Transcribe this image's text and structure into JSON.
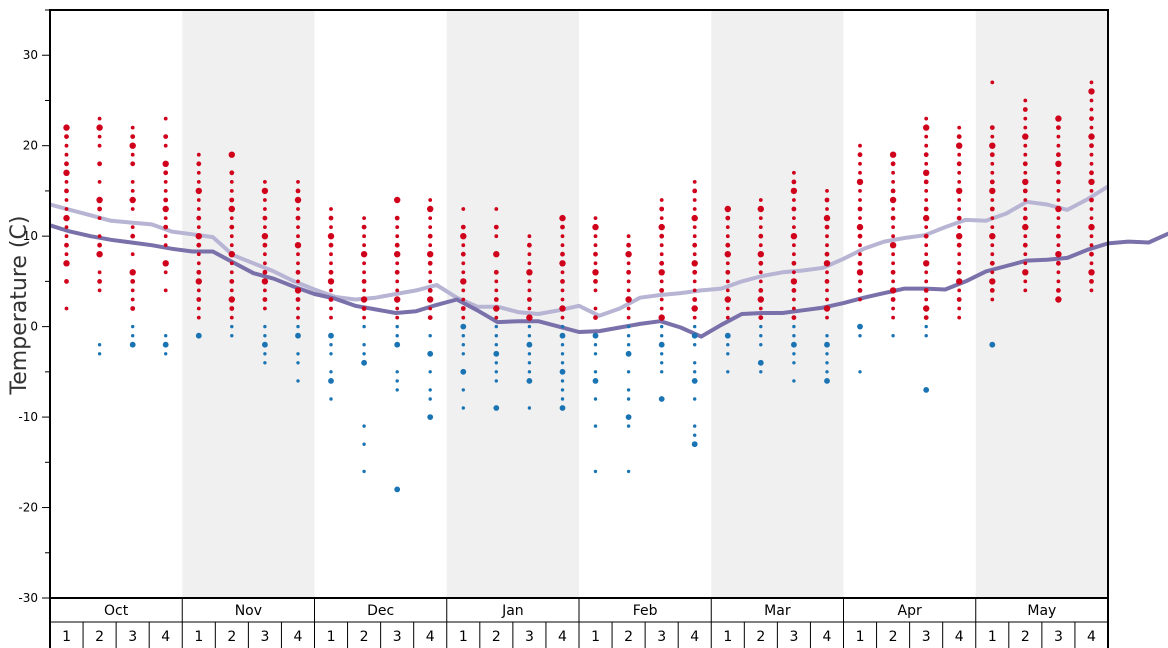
{
  "chart_data": {
    "type": "scatter",
    "ylabel": "Temperature (C)",
    "ylim": [
      -30,
      35
    ],
    "yticks": [
      -30,
      -20,
      -10,
      0,
      10,
      20,
      30
    ],
    "months": [
      "Oct",
      "Nov",
      "Dec",
      "Jan",
      "Feb",
      "Mar",
      "Apr",
      "May"
    ],
    "weeks": [
      "1",
      "2",
      "3",
      "4"
    ],
    "grid": false,
    "colors": {
      "warm": "#d0021b",
      "cold": "#1a74b3",
      "upper_line": "#b8b4d4",
      "lower_line": "#7a70aa",
      "shade": "#f0f0f0"
    },
    "series": [
      {
        "values": [
          13.5,
          12.9,
          12.3,
          11.7,
          11.5,
          11.3,
          10.5,
          10.2,
          9.9,
          7.9,
          7.0,
          6.1,
          5.0,
          4.1,
          3.3,
          3.0,
          3.2,
          3.6,
          4.0,
          4.6,
          3.2,
          2.2,
          2.2,
          1.6,
          1.4,
          1.8,
          2.3,
          1.2,
          2.0,
          3.2,
          3.5,
          3.7,
          4.0,
          4.2,
          5.0,
          5.6,
          6.0,
          6.2,
          6.5,
          7.5,
          8.6,
          9.4,
          9.8,
          10.1,
          11.0,
          11.8,
          11.7,
          12.5,
          13.8,
          13.5,
          12.9,
          14.1,
          15.5
        ]
      },
      {
        "values": [
          11.2,
          10.5,
          10.0,
          9.6,
          9.3,
          9.0,
          8.6,
          8.3,
          8.3,
          7.1,
          5.9,
          5.3,
          4.4,
          3.6,
          3.1,
          2.3,
          1.9,
          1.5,
          1.7,
          2.4,
          3.0,
          1.8,
          0.5,
          0.6,
          0.6,
          0.0,
          -0.6,
          -0.5,
          -0.1,
          0.3,
          0.6,
          -0.1,
          -1.1,
          0.2,
          1.4,
          1.5,
          1.5,
          1.8,
          2.1,
          2.6,
          3.2,
          3.7,
          4.2,
          4.2,
          4.1,
          5.0,
          6.1,
          6.7,
          7.3,
          7.4,
          7.6,
          8.5,
          9.2,
          9.4,
          9.3,
          10.3,
          11.5,
          11.1,
          10.5,
          11.6,
          13.0
        ]
      }
    ],
    "dot_columns": [
      {
        "x": "Oct 1",
        "warm": [
          22,
          21,
          20,
          19,
          18,
          17,
          16,
          15,
          14,
          13,
          12,
          11,
          10,
          9,
          8,
          7,
          5,
          2
        ],
        "cold": []
      },
      {
        "x": "Oct 2",
        "warm": [
          23,
          22,
          21,
          20,
          18,
          16,
          14,
          13,
          12,
          10,
          9,
          8,
          6,
          5,
          4
        ],
        "cold": [
          -2,
          -3
        ]
      },
      {
        "x": "Oct 3",
        "warm": [
          22,
          21,
          20,
          19,
          18,
          16,
          15,
          14,
          13,
          11,
          10,
          8,
          6,
          5,
          4,
          3,
          2
        ],
        "cold": [
          0,
          -1,
          -2
        ]
      },
      {
        "x": "Oct 4",
        "warm": [
          23,
          21,
          20,
          18,
          17,
          16,
          15,
          14,
          13,
          12,
          11,
          10,
          9,
          7,
          6,
          4
        ],
        "cold": [
          -1,
          -2,
          -3
        ]
      },
      {
        "x": "Nov 1",
        "warm": [
          19,
          18,
          17,
          16,
          15,
          14,
          13,
          12,
          11,
          10,
          9,
          8,
          7,
          6,
          5,
          4,
          3,
          2,
          1
        ],
        "cold": [
          -1
        ]
      },
      {
        "x": "Nov 2",
        "warm": [
          19,
          17,
          16,
          15,
          14,
          13,
          12,
          11,
          10,
          9,
          8,
          7,
          6,
          5,
          4,
          3,
          2,
          1
        ],
        "cold": [
          0,
          -1
        ]
      },
      {
        "x": "Nov 3",
        "warm": [
          16,
          15,
          14,
          13,
          12,
          11,
          10,
          9,
          8,
          7,
          6,
          5,
          4,
          3,
          2
        ],
        "cold": [
          0,
          -1,
          -2,
          -3,
          -4
        ]
      },
      {
        "x": "Nov 4",
        "warm": [
          16,
          15,
          14,
          13,
          12,
          11,
          10,
          9,
          8,
          7,
          6,
          5,
          4,
          3,
          2,
          1
        ],
        "cold": [
          0,
          -1,
          -3,
          -4,
          -6
        ]
      },
      {
        "x": "Dec 1",
        "warm": [
          13,
          12,
          11,
          10,
          9,
          8,
          7,
          6,
          5,
          4,
          3,
          2,
          1
        ],
        "cold": [
          -1,
          -2,
          -3,
          -5,
          -6,
          -8
        ]
      },
      {
        "x": "Dec 2",
        "warm": [
          12,
          11,
          10,
          9,
          8,
          7,
          6,
          5,
          4,
          3,
          2,
          1
        ],
        "cold": [
          0,
          -2,
          -3,
          -4,
          -11,
          -13,
          -16
        ]
      },
      {
        "x": "Dec 3",
        "warm": [
          14,
          12,
          11,
          10,
          9,
          8,
          7,
          6,
          5,
          4,
          3,
          2,
          1
        ],
        "cold": [
          0,
          -1,
          -2,
          -5,
          -6,
          -7,
          -18
        ]
      },
      {
        "x": "Dec 4",
        "warm": [
          14,
          13,
          12,
          11,
          10,
          9,
          8,
          7,
          6,
          5,
          4,
          3,
          2,
          1
        ],
        "cold": [
          -1,
          -3,
          -5,
          -7,
          -8,
          -10
        ]
      },
      {
        "x": "Jan 1",
        "warm": [
          13,
          11,
          10,
          9,
          8,
          7,
          6,
          5,
          4,
          3,
          2,
          1
        ],
        "cold": [
          0,
          -1,
          -2,
          -3,
          -5,
          -7,
          -9
        ]
      },
      {
        "x": "Jan 2",
        "warm": [
          13,
          11,
          10,
          8,
          6,
          5,
          4,
          3,
          2,
          1
        ],
        "cold": [
          0,
          -1,
          -2,
          -3,
          -4,
          -5,
          -6,
          -9
        ]
      },
      {
        "x": "Jan 3",
        "warm": [
          10,
          9,
          8,
          7,
          6,
          5,
          4,
          3,
          2,
          1
        ],
        "cold": [
          0,
          -1,
          -2,
          -3,
          -4,
          -5,
          -6,
          -9
        ]
      },
      {
        "x": "Jan 4",
        "warm": [
          12,
          11,
          10,
          9,
          8,
          7,
          6,
          5,
          4,
          3,
          2,
          1
        ],
        "cold": [
          0,
          -1,
          -2,
          -3,
          -4,
          -5,
          -6,
          -7,
          -8,
          -9
        ]
      },
      {
        "x": "Feb 1",
        "warm": [
          12,
          11,
          10,
          9,
          8,
          7,
          6,
          5,
          4,
          2,
          1
        ],
        "cold": [
          -1,
          -2,
          -3,
          -5,
          -6,
          -8,
          -11,
          -16
        ]
      },
      {
        "x": "Feb 2",
        "warm": [
          10,
          9,
          8,
          7,
          6,
          5,
          4,
          3,
          2,
          1
        ],
        "cold": [
          0,
          -1,
          -2,
          -3,
          -5,
          -7,
          -8,
          -10,
          -11,
          -16
        ]
      },
      {
        "x": "Feb 3",
        "warm": [
          14,
          13,
          12,
          11,
          10,
          9,
          8,
          7,
          6,
          5,
          4,
          3,
          2,
          1
        ],
        "cold": [
          0,
          -1,
          -2,
          -3,
          -4,
          -5,
          -8
        ]
      },
      {
        "x": "Feb 4",
        "warm": [
          16,
          15,
          14,
          13,
          12,
          11,
          10,
          9,
          8,
          7,
          6,
          5,
          4,
          3,
          2,
          1
        ],
        "cold": [
          0,
          -1,
          -2,
          -4,
          -5,
          -6,
          -8,
          -11,
          -12,
          -13
        ]
      },
      {
        "x": "Mar 1",
        "warm": [
          13,
          12,
          11,
          10,
          9,
          8,
          7,
          6,
          5,
          4,
          3,
          2,
          1
        ],
        "cold": [
          -1,
          -2,
          -3,
          -5
        ]
      },
      {
        "x": "Mar 2",
        "warm": [
          14,
          13,
          12,
          11,
          10,
          9,
          8,
          7,
          6,
          5,
          4,
          3,
          2,
          1
        ],
        "cold": [
          0,
          -1,
          -2,
          -4,
          -5
        ]
      },
      {
        "x": "Mar 3",
        "warm": [
          17,
          16,
          15,
          14,
          13,
          12,
          11,
          10,
          9,
          8,
          7,
          6,
          5,
          4,
          3,
          2,
          1
        ],
        "cold": [
          0,
          -1,
          -2,
          -3,
          -4,
          -6
        ]
      },
      {
        "x": "Mar 4",
        "warm": [
          15,
          14,
          13,
          12,
          11,
          10,
          9,
          8,
          7,
          6,
          5,
          4,
          3,
          2,
          1
        ],
        "cold": [
          -1,
          -2,
          -3,
          -4,
          -5,
          -6
        ]
      },
      {
        "x": "Apr 1",
        "warm": [
          20,
          19,
          18,
          17,
          16,
          15,
          14,
          13,
          12,
          11,
          10,
          9,
          8,
          7,
          6,
          5,
          4,
          3
        ],
        "cold": [
          0,
          -1,
          -5
        ]
      },
      {
        "x": "Apr 2",
        "warm": [
          19,
          18,
          17,
          16,
          15,
          14,
          13,
          12,
          11,
          10,
          9,
          8,
          7,
          6,
          5,
          4,
          3,
          2,
          1
        ],
        "cold": [
          -1
        ]
      },
      {
        "x": "Apr 3",
        "warm": [
          23,
          22,
          21,
          20,
          19,
          18,
          17,
          16,
          15,
          14,
          13,
          12,
          11,
          10,
          9,
          8,
          7,
          6,
          5,
          4,
          3,
          2,
          1
        ],
        "cold": [
          0,
          -1,
          -7
        ]
      },
      {
        "x": "Apr 4",
        "warm": [
          22,
          21,
          20,
          19,
          18,
          17,
          16,
          15,
          14,
          13,
          12,
          11,
          10,
          9,
          8,
          7,
          6,
          5,
          4,
          3,
          2,
          1
        ],
        "cold": []
      },
      {
        "x": "May 1",
        "warm": [
          27,
          22,
          21,
          20,
          19,
          18,
          17,
          16,
          15,
          14,
          13,
          12,
          11,
          10,
          9,
          8,
          7,
          6,
          5,
          4,
          3
        ],
        "cold": [
          -2
        ]
      },
      {
        "x": "May 2",
        "warm": [
          25,
          24,
          23,
          22,
          21,
          20,
          19,
          18,
          17,
          16,
          15,
          14,
          13,
          12,
          11,
          10,
          9,
          8,
          7,
          6,
          5,
          4
        ],
        "cold": []
      },
      {
        "x": "May 3",
        "warm": [
          23,
          22,
          21,
          20,
          19,
          18,
          17,
          16,
          15,
          14,
          13,
          12,
          11,
          10,
          9,
          8,
          7,
          6,
          5,
          4,
          3
        ],
        "cold": []
      },
      {
        "x": "May 4",
        "warm": [
          27,
          26,
          25,
          24,
          23,
          22,
          21,
          20,
          19,
          18,
          17,
          16,
          15,
          14,
          13,
          12,
          11,
          10,
          9,
          8,
          7,
          6,
          5,
          4
        ],
        "cold": []
      }
    ]
  }
}
